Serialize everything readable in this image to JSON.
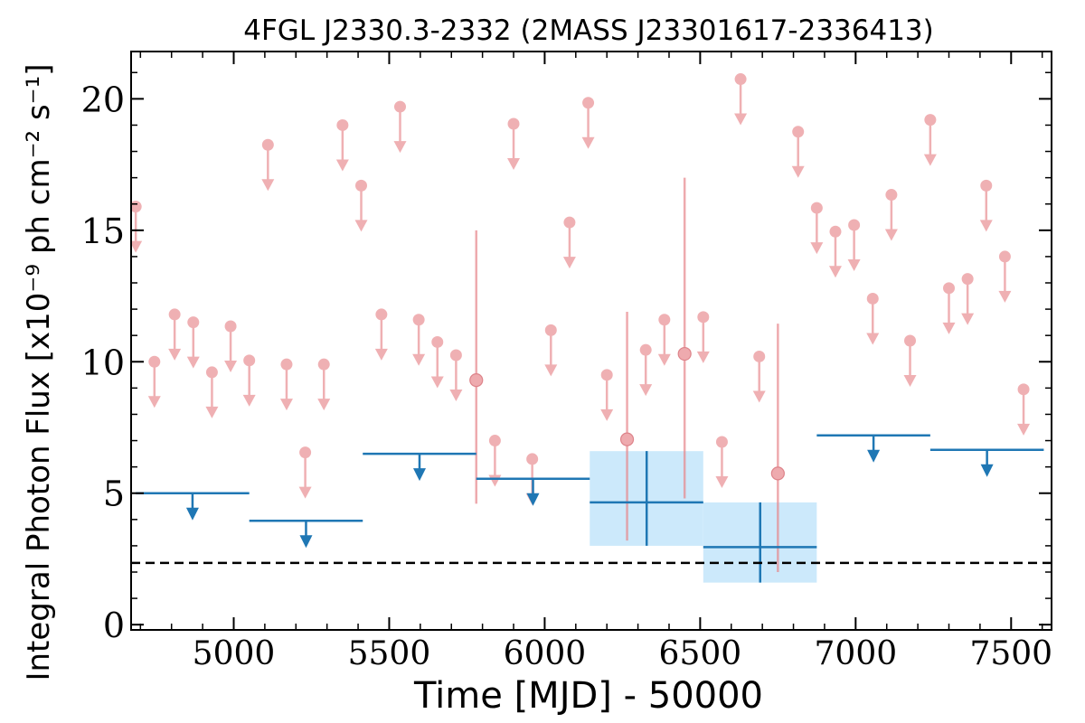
{
  "chart_data": {
    "type": "scatter",
    "title": "4FGL J2330.3-2332 (2MASS J23301617-2336413)",
    "xlabel": "Time [MJD] - 50000",
    "ylabel": "Integral Photon Flux [x10⁻⁹ ph cm⁻² s⁻¹]",
    "xlim": [
      4670,
      7630
    ],
    "ylim": [
      -0.2,
      21.8
    ],
    "x_ticks": [
      5000,
      5500,
      6000,
      6500,
      7000,
      7500
    ],
    "y_ticks": [
      0,
      5,
      10,
      15,
      20
    ],
    "grid": false,
    "colors": {
      "short_bins": "#e8878c",
      "long_bins": "#1f77b4",
      "long_bin_error_band": "#cce9fb",
      "reference_line": "#000000"
    },
    "reference_line": {
      "y": 2.35,
      "style": "dashed"
    },
    "series": [
      {
        "bin_width": 62,
        "upper_limits": [
          {
            "x": 4685,
            "y": 15.9
          },
          {
            "x": 4745,
            "y": 10.0
          },
          {
            "x": 4810,
            "y": 11.8
          },
          {
            "x": 4870,
            "y": 11.5
          },
          {
            "x": 4930,
            "y": 9.6
          },
          {
            "x": 4990,
            "y": 11.35
          },
          {
            "x": 5050,
            "y": 10.05
          },
          {
            "x": 5110,
            "y": 18.25
          },
          {
            "x": 5170,
            "y": 9.9
          },
          {
            "x": 5230,
            "y": 6.55
          },
          {
            "x": 5290,
            "y": 9.9
          },
          {
            "x": 5350,
            "y": 19.0
          },
          {
            "x": 5410,
            "y": 16.7
          },
          {
            "x": 5475,
            "y": 11.8
          },
          {
            "x": 5535,
            "y": 19.7
          },
          {
            "x": 5595,
            "y": 11.6
          },
          {
            "x": 5655,
            "y": 10.75
          },
          {
            "x": 5715,
            "y": 10.25
          },
          {
            "x": 5840,
            "y": 7.0
          },
          {
            "x": 5900,
            "y": 19.05
          },
          {
            "x": 5960,
            "y": 6.3
          },
          {
            "x": 6020,
            "y": 11.2
          },
          {
            "x": 6080,
            "y": 15.3
          },
          {
            "x": 6140,
            "y": 19.85
          },
          {
            "x": 6200,
            "y": 9.5
          },
          {
            "x": 6325,
            "y": 10.45
          },
          {
            "x": 6385,
            "y": 11.6
          },
          {
            "x": 6510,
            "y": 11.7
          },
          {
            "x": 6570,
            "y": 6.95
          },
          {
            "x": 6630,
            "y": 20.75
          },
          {
            "x": 6690,
            "y": 10.2
          },
          {
            "x": 6815,
            "y": 18.75
          },
          {
            "x": 6875,
            "y": 15.85
          },
          {
            "x": 6935,
            "y": 14.95
          },
          {
            "x": 6995,
            "y": 15.2
          },
          {
            "x": 7055,
            "y": 12.4
          },
          {
            "x": 7115,
            "y": 16.35
          },
          {
            "x": 7175,
            "y": 10.8
          },
          {
            "x": 7240,
            "y": 19.2
          },
          {
            "x": 7300,
            "y": 12.8
          },
          {
            "x": 7360,
            "y": 13.15
          },
          {
            "x": 7420,
            "y": 16.7
          },
          {
            "x": 7480,
            "y": 14.0
          },
          {
            "x": 7540,
            "y": 8.95
          }
        ],
        "detections": [
          {
            "x": 5780,
            "y": 9.3,
            "yerr_low": 4.6,
            "yerr_high": 15.0
          },
          {
            "x": 6265,
            "y": 7.05,
            "yerr_low": 3.2,
            "yerr_high": 11.9
          },
          {
            "x": 6450,
            "y": 10.3,
            "yerr_low": 4.8,
            "yerr_high": 17.0
          },
          {
            "x": 6750,
            "y": 5.75,
            "yerr_low": 2.0,
            "yerr_high": 11.45
          }
        ]
      },
      {
        "bin_width": 365,
        "upper_limits": [
          {
            "x0": 4685,
            "x1": 5050,
            "y": 5.0
          },
          {
            "x0": 5050,
            "x1": 5415,
            "y": 3.95
          },
          {
            "x0": 5415,
            "x1": 5780,
            "y": 6.5
          },
          {
            "x0": 5780,
            "x1": 6145,
            "y": 5.55
          },
          {
            "x0": 6875,
            "x1": 7240,
            "y": 7.2
          },
          {
            "x0": 7240,
            "x1": 7605,
            "y": 6.65
          }
        ],
        "detections": [
          {
            "x0": 6145,
            "x1": 6510,
            "x": 6328,
            "y": 4.65,
            "ylo": 3.0,
            "yhi": 6.6
          },
          {
            "x0": 6510,
            "x1": 6875,
            "x": 6693,
            "y": 2.95,
            "ylo": 1.6,
            "yhi": 4.65
          }
        ]
      }
    ]
  }
}
